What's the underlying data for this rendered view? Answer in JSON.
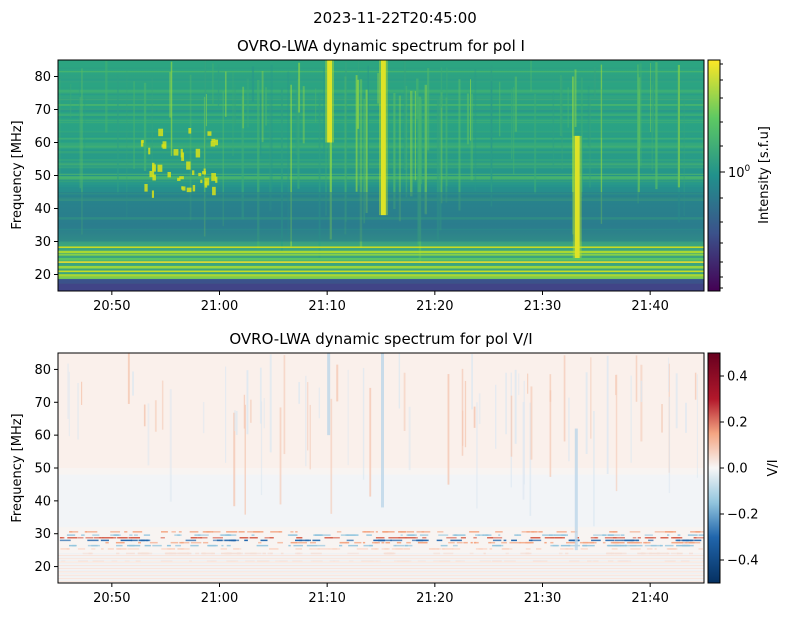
{
  "suptitle": "2023-11-22T20:45:00",
  "chart_data": [
    {
      "type": "heatmap",
      "title": "OVRO-LWA dynamic spectrum for pol I",
      "xlabel": "",
      "ylabel": "Frequency [MHz]",
      "x_range": [
        "20:45",
        "21:45"
      ],
      "xticks": [
        "20:50",
        "21:00",
        "21:10",
        "21:20",
        "21:30",
        "21:40"
      ],
      "ylim": [
        15,
        85
      ],
      "yticks": [
        20,
        30,
        40,
        50,
        60,
        70,
        80
      ],
      "colormap": "viridis",
      "colorbar": {
        "label": "Intensity [s.f.u]",
        "scale": "log",
        "ticks": [
          {
            "value": 1,
            "base": "10",
            "exp": "0"
          }
        ]
      },
      "features": [
        {
          "kind": "burst",
          "start": "21:10",
          "end": "21:11",
          "fmin": 60,
          "fmax": 85
        },
        {
          "kind": "burst",
          "start": "21:15",
          "end": "21:16",
          "fmin": 38,
          "fmax": 85
        },
        {
          "kind": "burst",
          "start": "21:33",
          "end": "21:34",
          "fmin": 25,
          "fmax": 62
        },
        {
          "kind": "band",
          "fmin": 19,
          "fmax": 29
        }
      ],
      "grid": false
    },
    {
      "type": "heatmap",
      "title": "OVRO-LWA dynamic spectrum for pol V/I",
      "xlabel": "",
      "ylabel": "Frequency [MHz]",
      "x_range": [
        "20:45",
        "21:45"
      ],
      "xticks": [
        "20:50",
        "21:00",
        "21:10",
        "21:20",
        "21:30",
        "21:40"
      ],
      "ylim": [
        15,
        85
      ],
      "yticks": [
        20,
        30,
        40,
        50,
        60,
        70,
        80
      ],
      "colormap": "RdBu_r",
      "colorbar": {
        "label": "V/I",
        "scale": "linear",
        "range": [
          -0.5,
          0.5
        ],
        "ticks": [
          "0.4",
          "0.2",
          "0.0",
          "−0.2",
          "−0.4"
        ]
      },
      "grid": false
    }
  ],
  "colors": {
    "viridis": [
      "#440154",
      "#3b528b",
      "#21918c",
      "#5ec962",
      "#fde725"
    ],
    "rdbu": [
      "#053061",
      "#4393c3",
      "#f7f7f7",
      "#f4a582",
      "#67001f"
    ]
  }
}
